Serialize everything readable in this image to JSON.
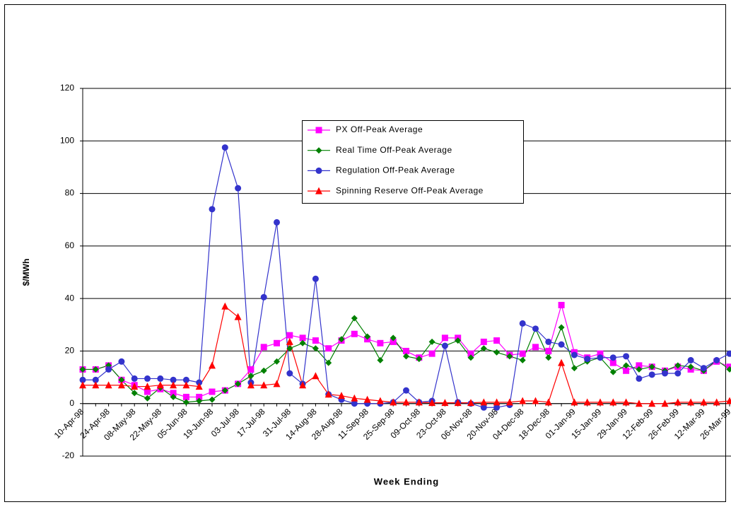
{
  "chart_data": {
    "type": "line",
    "xlabel": "Week Ending",
    "ylabel": "$/MWh",
    "ylim": [
      -20,
      120
    ],
    "yticks": [
      -20,
      0,
      20,
      40,
      60,
      80,
      100,
      120
    ],
    "grid": true,
    "categories": [
      "10-Apr-98",
      null,
      "24-Apr-98",
      null,
      "08-May-98",
      null,
      "22-May-98",
      null,
      "05-Jun-98",
      null,
      "19-Jun-98",
      null,
      "03-Jul-98",
      null,
      "17-Jul-98",
      null,
      "31-Jul-98",
      null,
      "14-Aug-98",
      null,
      "28-Aug-98",
      null,
      "11-Sep-98",
      null,
      "25-Sep-98",
      null,
      "09-Oct-98",
      null,
      "23-Oct-98",
      null,
      "06-Nov-98",
      null,
      "20-Nov-98",
      null,
      "04-Dec-98",
      null,
      "18-Dec-98",
      null,
      "01-Jan-99",
      null,
      "15-Jan-99",
      null,
      "29-Jan-99",
      null,
      "12-Feb-99",
      null,
      "26-Feb-99",
      null,
      "12-Mar-99",
      null,
      "26-Mar-99"
    ],
    "series": [
      {
        "name": "PX Off-Peak Average",
        "color": "#ff00ff",
        "marker": "square",
        "values": [
          13,
          13,
          14.5,
          9,
          7,
          4.5,
          5.5,
          4,
          2.5,
          2.5,
          4.5,
          5,
          7.5,
          13,
          21.5,
          23,
          26,
          25,
          24,
          21,
          24,
          26.5,
          24.5,
          23,
          23.5,
          20,
          17.5,
          19,
          25,
          25,
          19,
          23.5,
          24,
          18.5,
          19,
          21.5,
          20,
          37.5,
          19.5,
          17.5,
          19,
          15.5,
          12.5,
          14.5,
          14,
          12.5,
          14,
          13,
          12.5,
          16,
          14
        ]
      },
      {
        "name": "Real Time Off-Peak Average",
        "color": "#008000",
        "marker": "diamond",
        "values": [
          13,
          13,
          14.5,
          9,
          4,
          2,
          6,
          2.5,
          0.5,
          1,
          1.5,
          5,
          7.5,
          10.5,
          12.5,
          16,
          21,
          23,
          21,
          15.5,
          24.5,
          32.5,
          25.5,
          16.5,
          25,
          18,
          17,
          23.5,
          22,
          24,
          17.5,
          21,
          19.5,
          18,
          16.5,
          28.5,
          17.5,
          29,
          13.5,
          16,
          17.5,
          12,
          14.5,
          13,
          14,
          12.5,
          14.5,
          14,
          12.5,
          16.5,
          13
        ]
      },
      {
        "name": "Regulation Off-Peak Average",
        "color": "#3333cc",
        "marker": "circle",
        "values": [
          9,
          9,
          13,
          16,
          9.5,
          9.5,
          9.5,
          9,
          9,
          8,
          74,
          97.5,
          82,
          8,
          40.5,
          69,
          11.5,
          7.5,
          47.5,
          3.5,
          1.5,
          0,
          0,
          0,
          0.5,
          5,
          0.5,
          1,
          22,
          0.5,
          0,
          -1.5,
          -1.5,
          -0.5,
          30.5,
          28.5,
          23.5,
          22.5,
          18.5,
          17,
          17.5,
          17.5,
          18,
          9.5,
          11,
          11.5,
          11.5,
          16.5,
          13.5,
          16.5,
          19
        ]
      },
      {
        "name": "Spinning Reserve Off-Peak Average",
        "color": "#ff0000",
        "marker": "triangle",
        "values": [
          7,
          7,
          7,
          7,
          6.5,
          6.5,
          7,
          7,
          7,
          6.5,
          14.5,
          37,
          33,
          7,
          7,
          7.5,
          23.5,
          7,
          10.5,
          3.5,
          3,
          2,
          1.5,
          1,
          0.5,
          0.5,
          0.5,
          0.3,
          0.3,
          0.3,
          0.3,
          0.5,
          0.5,
          0.5,
          1,
          1,
          0.5,
          15.5,
          0.5,
          0.5,
          0.5,
          0.5,
          0.5,
          0,
          0,
          0,
          0.5,
          0.5,
          0.5,
          0.5,
          1
        ]
      }
    ]
  }
}
